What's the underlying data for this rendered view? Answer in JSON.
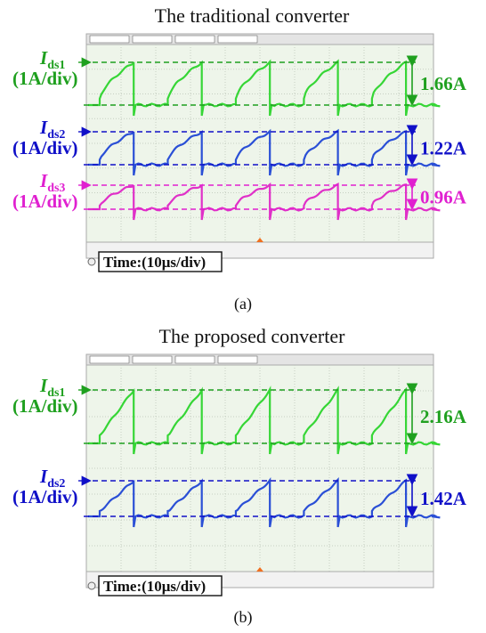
{
  "panels": [
    {
      "title": "The traditional converter",
      "channels": [
        {
          "symbol": "I",
          "subscript": "ds1",
          "scale": "(1A/div)",
          "peak": "1.66A"
        },
        {
          "symbol": "I",
          "subscript": "ds2",
          "scale": "(1A/div)",
          "peak": "1.22A"
        },
        {
          "symbol": "I",
          "subscript": "ds3",
          "scale": "(1A/div)",
          "peak": "0.96A"
        }
      ],
      "time_scale": "Time:(10μs/div)",
      "caption": "(a)"
    },
    {
      "title": "The proposed converter",
      "channels": [
        {
          "symbol": "I",
          "subscript": "ds1",
          "scale": "(1A/div)",
          "peak": "2.16A"
        },
        {
          "symbol": "I",
          "subscript": "ds2",
          "scale": "(1A/div)",
          "peak": "1.42A"
        }
      ],
      "time_scale": "Time:(10μs/div)",
      "caption": "(b)"
    }
  ]
}
